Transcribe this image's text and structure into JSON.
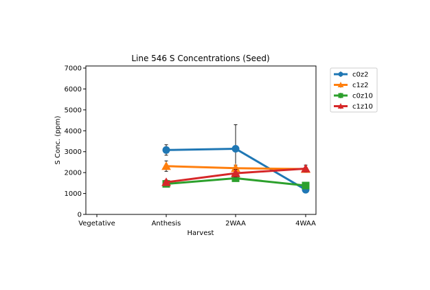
{
  "chart_data": {
    "type": "line",
    "title": "Line 546 S Concentrations (Seed)",
    "xlabel": "Harvest",
    "ylabel": "S Conc. (ppm)",
    "categories": [
      "Vegetative",
      "Anthesis",
      "2WAA",
      "4WAA"
    ],
    "ylim": [
      0,
      7100
    ],
    "yticks": [
      0,
      1000,
      2000,
      3000,
      4000,
      5000,
      6000,
      7000
    ],
    "grid": false,
    "legend_position": "outside-right",
    "series": [
      {
        "name": "c0z2",
        "color": "#1f77b4",
        "marker": "circle",
        "values": [
          null,
          3080,
          3140,
          1180
        ],
        "errors": [
          null,
          250,
          1150,
          80
        ]
      },
      {
        "name": "c1z2",
        "color": "#ff7f0e",
        "marker": "triangle",
        "values": [
          null,
          2310,
          2210,
          2170
        ],
        "errors": [
          null,
          250,
          150,
          80
        ]
      },
      {
        "name": "c0z10",
        "color": "#2ca02c",
        "marker": "square",
        "values": [
          null,
          1460,
          1730,
          1380
        ],
        "errors": [
          null,
          60,
          100,
          60
        ]
      },
      {
        "name": "c1z10",
        "color": "#d62728",
        "marker": "triangle",
        "values": [
          null,
          1540,
          1970,
          2190
        ],
        "errors": [
          null,
          100,
          180,
          170
        ]
      }
    ]
  }
}
